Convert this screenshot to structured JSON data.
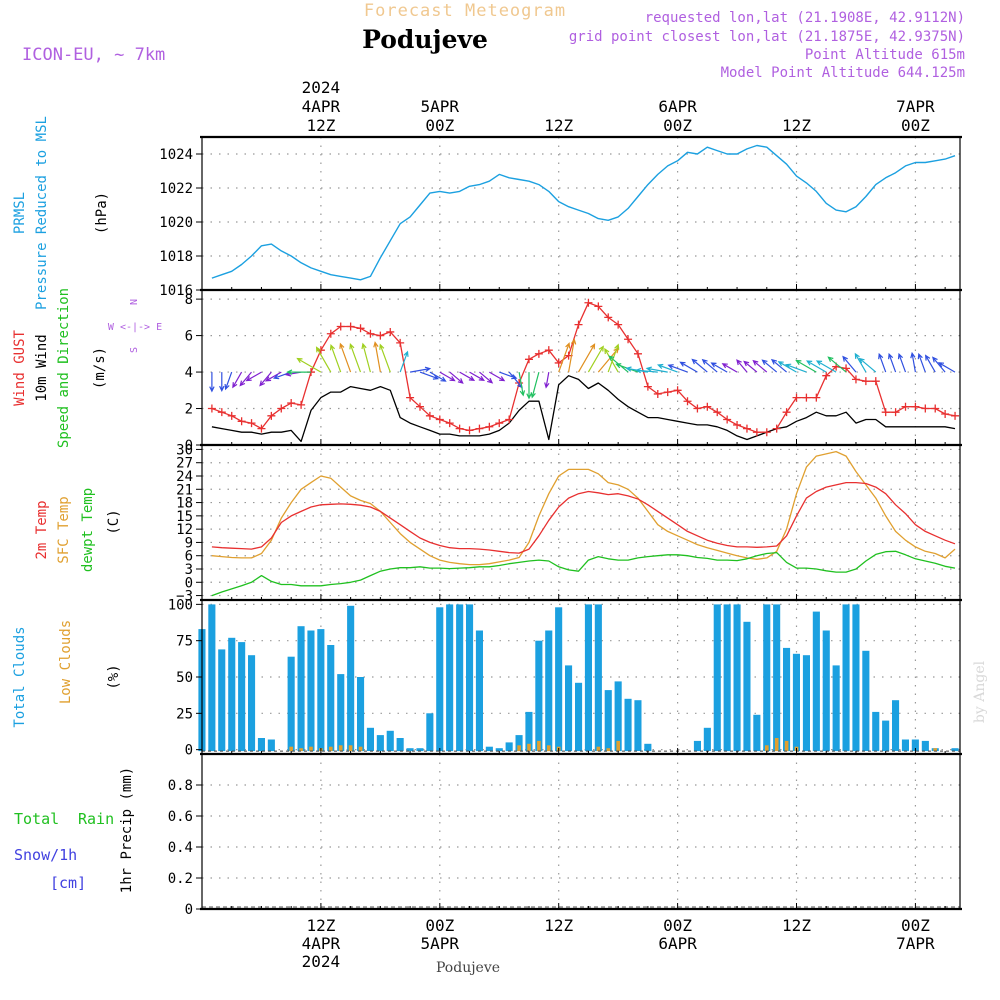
{
  "header": {
    "title": "Forecast Meteogram",
    "location": "Podujeve",
    "model": "ICON-EU, ~ 7km",
    "requested": "requested lon,lat (21.1908E, 42.9112N)",
    "gridpoint": "grid point closest lon,lat (21.1875E, 42.9375N)",
    "point_altitude": "Point Altitude 615m",
    "model_altitude": "Model Point Altitude 644.125m",
    "credit": "by Angel",
    "footer_location": "Podujeve"
  },
  "colors": {
    "pressure": "#1ba0e0",
    "gust": "#e83030",
    "wind": "#000000",
    "arrow_label": "#20c020",
    "temp2m": "#e83030",
    "sfc": "#e0a030",
    "dewpt": "#20c020",
    "total_clouds": "#1ba0e0",
    "low_clouds": "#e0a030",
    "rain": "#20c020",
    "snow": "#4040e0",
    "purple": "#b060e0",
    "title": "#f0c890"
  },
  "time_axis": {
    "top_labels": [
      {
        "t": 12,
        "lines": [
          "2024",
          "4APR",
          "12Z"
        ]
      },
      {
        "t": 24,
        "lines": [
          "5APR",
          "00Z"
        ]
      },
      {
        "t": 36,
        "lines": [
          "12Z"
        ]
      },
      {
        "t": 48,
        "lines": [
          "6APR",
          "00Z"
        ]
      },
      {
        "t": 60,
        "lines": [
          "12Z"
        ]
      },
      {
        "t": 72,
        "lines": [
          "7APR",
          "00Z"
        ]
      }
    ],
    "bottom_labels": [
      {
        "t": 12,
        "lines": [
          "12Z",
          "4APR",
          "2024"
        ]
      },
      {
        "t": 24,
        "lines": [
          "00Z",
          "5APR"
        ]
      },
      {
        "t": 36,
        "lines": [
          "12Z"
        ]
      },
      {
        "t": 48,
        "lines": [
          "00Z",
          "6APR"
        ]
      },
      {
        "t": 60,
        "lines": [
          "12Z"
        ]
      },
      {
        "t": 72,
        "lines": [
          "00Z",
          "7APR"
        ]
      }
    ]
  },
  "chart_data": [
    {
      "type": "line",
      "panel": "pressure",
      "labels": [
        "PRMSL",
        "Pressure Reduced to MSL",
        "(hPa)"
      ],
      "ylim": [
        1016,
        1025
      ],
      "yticks": [
        1016,
        1018,
        1020,
        1022,
        1024
      ],
      "x": [
        1,
        2,
        3,
        4,
        5,
        6,
        7,
        8,
        9,
        10,
        11,
        12,
        13,
        14,
        15,
        16,
        17,
        18,
        19,
        20,
        21,
        22,
        23,
        24,
        25,
        26,
        27,
        28,
        29,
        30,
        31,
        32,
        33,
        34,
        35,
        36,
        37,
        38,
        39,
        40,
        41,
        42,
        43,
        44,
        45,
        46,
        47,
        48,
        49,
        50,
        51,
        52,
        53,
        54,
        55,
        56,
        57,
        58,
        59,
        60,
        61,
        62,
        63,
        64,
        65,
        66,
        67,
        68,
        69,
        70,
        71,
        72,
        73,
        74,
        75,
        76
      ],
      "series": [
        {
          "name": "PRMSL",
          "values": [
            1016.7,
            1016.9,
            1017.1,
            1017.5,
            1018.0,
            1018.6,
            1018.7,
            1018.3,
            1018.0,
            1017.6,
            1017.3,
            1017.1,
            1016.9,
            1016.8,
            1016.7,
            1016.6,
            1016.8,
            1017.9,
            1018.9,
            1019.9,
            1020.3,
            1021.0,
            1021.7,
            1021.8,
            1021.7,
            1021.8,
            1022.1,
            1022.2,
            1022.4,
            1022.8,
            1022.6,
            1022.5,
            1022.4,
            1022.2,
            1021.8,
            1021.2,
            1020.9,
            1020.7,
            1020.5,
            1020.2,
            1020.1,
            1020.3,
            1020.8,
            1021.5,
            1022.2,
            1022.8,
            1023.3,
            1023.6,
            1024.1,
            1024.0,
            1024.4,
            1024.2,
            1024.0,
            1024.0,
            1024.3,
            1024.5,
            1024.4,
            1023.9,
            1023.4,
            1022.7,
            1022.3,
            1021.8,
            1021.1,
            1020.7,
            1020.6,
            1020.9,
            1021.5,
            1022.2,
            1022.6,
            1022.9,
            1023.3,
            1023.5,
            1023.5,
            1023.6,
            1023.7,
            1023.9
          ]
        }
      ]
    },
    {
      "type": "line",
      "panel": "wind",
      "labels": [
        "Wind GUST",
        "10m Wind",
        "Speed and Direction",
        "(m/s)"
      ],
      "compass": [
        "N",
        "W <-|-> E",
        "S"
      ],
      "ylim": [
        0,
        8.5
      ],
      "yticks": [
        0,
        2,
        4,
        6,
        8
      ],
      "x": [
        1,
        2,
        3,
        4,
        5,
        6,
        7,
        8,
        9,
        10,
        11,
        12,
        13,
        14,
        15,
        16,
        17,
        18,
        19,
        20,
        21,
        22,
        23,
        24,
        25,
        26,
        27,
        28,
        29,
        30,
        31,
        32,
        33,
        34,
        35,
        36,
        37,
        38,
        39,
        40,
        41,
        42,
        43,
        44,
        45,
        46,
        47,
        48,
        49,
        50,
        51,
        52,
        53,
        54,
        55,
        56,
        57,
        58,
        59,
        60,
        61,
        62,
        63,
        64,
        65,
        66,
        67,
        68,
        69,
        70,
        71,
        72,
        73,
        74,
        75,
        76
      ],
      "series": [
        {
          "name": "Wind GUST",
          "values": [
            2.0,
            1.8,
            1.6,
            1.3,
            1.2,
            0.9,
            1.6,
            2.0,
            2.3,
            2.2,
            4.0,
            5.2,
            6.1,
            6.5,
            6.5,
            6.4,
            6.1,
            6.0,
            6.2,
            5.6,
            2.6,
            2.1,
            1.6,
            1.4,
            1.2,
            0.9,
            0.8,
            0.9,
            1.0,
            1.2,
            1.4,
            3.4,
            4.7,
            5.0,
            5.2,
            4.5,
            4.9,
            6.6,
            7.8,
            7.6,
            7.0,
            6.6,
            5.8,
            5.0,
            3.2,
            2.8,
            2.9,
            3.0,
            2.4,
            2.0,
            2.1,
            1.8,
            1.4,
            1.1,
            0.9,
            0.7,
            0.7,
            0.9,
            1.8,
            2.6,
            2.6,
            2.6,
            3.8,
            4.3,
            4.2,
            3.6,
            3.5,
            3.5,
            1.8,
            1.8,
            2.1,
            2.1,
            2.0,
            2.0,
            1.7,
            1.6
          ]
        },
        {
          "name": "10m Wind",
          "values": [
            1.0,
            0.9,
            0.8,
            0.7,
            0.7,
            0.6,
            0.7,
            0.7,
            0.8,
            0.2,
            1.9,
            2.6,
            2.9,
            2.9,
            3.2,
            3.1,
            3.0,
            3.2,
            3.0,
            1.5,
            1.2,
            1.0,
            0.8,
            0.6,
            0.6,
            0.5,
            0.5,
            0.5,
            0.6,
            0.8,
            1.2,
            1.9,
            2.4,
            2.4,
            0.3,
            3.3,
            3.8,
            3.6,
            3.1,
            3.4,
            3.0,
            2.5,
            2.1,
            1.8,
            1.5,
            1.5,
            1.4,
            1.3,
            1.2,
            1.1,
            1.1,
            1.0,
            0.8,
            0.5,
            0.3,
            0.5,
            0.7,
            0.9,
            1.0,
            1.3,
            1.5,
            1.8,
            1.6,
            1.6,
            1.8,
            1.2,
            1.4,
            1.4,
            1.0,
            1.0,
            1.0,
            1.0,
            1.0,
            1.0,
            1.0,
            0.9
          ]
        }
      ],
      "direction_deg": [
        360,
        360,
        20,
        30,
        40,
        60,
        40,
        60,
        70,
        80,
        90,
        120,
        150,
        160,
        160,
        160,
        165,
        170,
        160,
        200,
        260,
        290,
        300,
        300,
        310,
        300,
        300,
        310,
        300,
        290,
        320,
        350,
        360,
        15,
        10,
        200,
        190,
        210,
        210,
        220,
        200,
        150,
        130,
        110,
        100,
        95,
        100,
        110,
        110,
        120,
        130,
        130,
        120,
        120,
        140,
        130,
        130,
        130,
        130,
        120,
        110,
        120,
        120,
        120,
        130,
        140,
        150,
        130,
        160,
        160,
        160,
        170,
        160,
        150,
        140,
        120
      ]
    },
    {
      "type": "line",
      "panel": "temperature",
      "labels": [
        "2m Temp",
        "SFC Temp",
        "dewpt Temp",
        "(C)"
      ],
      "ylim": [
        -4,
        31
      ],
      "yticks": [
        -3,
        0,
        3,
        6,
        9,
        12,
        15,
        18,
        21,
        24,
        27,
        30
      ],
      "x": [
        1,
        2,
        3,
        4,
        5,
        6,
        7,
        8,
        9,
        10,
        11,
        12,
        13,
        14,
        15,
        16,
        17,
        18,
        19,
        20,
        21,
        22,
        23,
        24,
        25,
        26,
        27,
        28,
        29,
        30,
        31,
        32,
        33,
        34,
        35,
        36,
        37,
        38,
        39,
        40,
        41,
        42,
        43,
        44,
        45,
        46,
        47,
        48,
        49,
        50,
        51,
        52,
        53,
        54,
        55,
        56,
        57,
        58,
        59,
        60,
        61,
        62,
        63,
        64,
        65,
        66,
        67,
        68,
        69,
        70,
        71,
        72,
        73,
        74,
        75,
        76
      ],
      "series": [
        {
          "name": "2m Temp",
          "values": [
            8.0,
            7.8,
            7.7,
            7.6,
            7.5,
            8.0,
            10.0,
            13.5,
            15.0,
            16.0,
            17.0,
            17.5,
            17.6,
            17.7,
            17.6,
            17.4,
            17.0,
            16.0,
            14.5,
            13.0,
            11.5,
            10.0,
            9.0,
            8.3,
            7.8,
            7.6,
            7.6,
            7.5,
            7.3,
            7.0,
            6.7,
            6.6,
            7.5,
            10.5,
            14.0,
            17.0,
            19.0,
            20.0,
            20.5,
            20.2,
            19.8,
            20.0,
            19.5,
            18.8,
            17.5,
            16.0,
            14.5,
            13.0,
            11.5,
            10.5,
            9.5,
            8.8,
            8.3,
            8.0,
            8.0,
            7.9,
            8.0,
            8.2,
            10.5,
            15.0,
            19.0,
            20.5,
            21.5,
            22.0,
            22.5,
            22.5,
            22.3,
            21.5,
            20.0,
            17.5,
            15.5,
            13.0,
            11.5,
            10.5,
            9.5,
            8.7
          ]
        },
        {
          "name": "SFC Temp",
          "values": [
            6.0,
            5.8,
            5.6,
            5.5,
            5.5,
            6.5,
            9.5,
            14.5,
            18.0,
            21.0,
            22.5,
            24.0,
            23.5,
            21.5,
            19.5,
            18.5,
            17.8,
            16.0,
            13.5,
            11.0,
            9.0,
            7.5,
            6.0,
            5.0,
            4.5,
            4.2,
            4.0,
            4.0,
            4.2,
            4.6,
            5.0,
            5.6,
            9.0,
            15.0,
            20.0,
            24.0,
            25.5,
            25.5,
            25.5,
            24.5,
            22.5,
            22.0,
            21.0,
            19.0,
            16.0,
            13.0,
            11.5,
            10.5,
            9.5,
            8.5,
            7.8,
            7.2,
            6.6,
            6.0,
            5.5,
            5.2,
            5.5,
            7.0,
            12.0,
            20.0,
            26.0,
            28.5,
            29.0,
            29.5,
            28.5,
            25.0,
            22.0,
            19.0,
            15.0,
            11.5,
            9.5,
            8.0,
            7.0,
            6.5,
            5.5,
            7.5
          ]
        },
        {
          "name": "dewpt Temp",
          "values": [
            -3.0,
            -2.2,
            -1.5,
            -0.8,
            0.0,
            1.5,
            0.2,
            -0.5,
            -0.5,
            -0.8,
            -0.8,
            -0.8,
            -0.5,
            -0.3,
            0.0,
            0.5,
            1.5,
            2.5,
            3.0,
            3.3,
            3.3,
            3.5,
            3.2,
            3.2,
            3.1,
            3.2,
            3.3,
            3.5,
            3.5,
            3.8,
            4.2,
            4.5,
            4.8,
            5.0,
            4.8,
            3.5,
            2.8,
            2.5,
            5.0,
            5.8,
            5.3,
            5.0,
            5.0,
            5.5,
            5.8,
            6.0,
            6.2,
            6.2,
            6.0,
            5.6,
            5.4,
            5.0,
            5.0,
            4.9,
            5.3,
            6.0,
            6.5,
            6.7,
            4.5,
            3.2,
            3.2,
            3.0,
            2.6,
            2.3,
            2.3,
            3.0,
            4.8,
            6.3,
            6.9,
            7.0,
            6.2,
            5.3,
            4.8,
            4.3,
            3.6,
            3.2
          ]
        }
      ]
    },
    {
      "type": "bar",
      "panel": "clouds",
      "labels": [
        "Total Clouds",
        "Low Clouds",
        "(%)"
      ],
      "ylim": [
        -3,
        103
      ],
      "yticks": [
        0,
        25,
        50,
        75,
        100
      ],
      "x": [
        0,
        1,
        2,
        3,
        4,
        5,
        6,
        7,
        8,
        9,
        10,
        11,
        12,
        13,
        14,
        15,
        16,
        17,
        18,
        19,
        20,
        21,
        22,
        23,
        24,
        25,
        26,
        27,
        28,
        29,
        30,
        31,
        32,
        33,
        34,
        35,
        36,
        37,
        38,
        39,
        40,
        41,
        42,
        43,
        44,
        45,
        46,
        47,
        48,
        49,
        50,
        51,
        52,
        53,
        54,
        55,
        56,
        57,
        58,
        59,
        60,
        61,
        62,
        63,
        64,
        65,
        66,
        67,
        68,
        69,
        70,
        71,
        72,
        73,
        74,
        75,
        76
      ],
      "series": [
        {
          "name": "Total Clouds",
          "values": [
            83,
            100,
            69,
            77,
            74,
            65,
            8,
            7,
            0,
            64,
            85,
            82,
            83,
            72,
            52,
            99,
            50,
            15,
            10,
            13,
            8,
            1,
            1,
            25,
            98,
            100,
            100,
            100,
            82,
            2,
            1,
            5,
            10,
            26,
            75,
            82,
            98,
            58,
            46,
            100,
            100,
            41,
            47,
            35,
            34,
            4,
            0,
            0,
            0,
            0,
            6,
            15,
            100,
            100,
            100,
            88,
            24,
            100,
            100,
            70,
            66,
            65,
            95,
            82,
            58,
            100,
            100,
            68,
            26,
            20,
            34,
            7,
            7,
            6,
            1,
            0,
            1
          ]
        },
        {
          "name": "Low Clouds",
          "values": [
            0,
            0,
            0,
            0,
            0,
            0,
            0,
            0,
            0,
            2,
            1,
            2,
            1,
            2,
            3,
            3,
            2,
            0,
            0,
            0,
            0,
            0,
            0,
            0,
            0,
            0,
            0,
            0,
            0,
            0,
            0,
            0,
            3,
            4,
            6,
            3,
            2,
            0,
            0,
            0,
            2,
            1,
            6,
            0,
            0,
            0,
            0,
            0,
            0,
            0,
            0,
            0,
            0,
            0,
            0,
            0,
            0,
            3,
            8,
            6,
            2,
            0,
            0,
            0,
            0,
            0,
            0,
            0,
            0,
            0,
            0,
            0,
            0,
            0,
            1,
            0,
            0
          ]
        }
      ]
    },
    {
      "type": "bar",
      "panel": "precipitation",
      "labels": [
        "Total",
        "Rain",
        "Snow/1h",
        "[cm]",
        "1hr Precip (mm)"
      ],
      "ylim": [
        0,
        1.0
      ],
      "yticks": [
        0,
        0.2,
        0.4,
        0.6,
        0.8
      ],
      "x": [],
      "series": []
    }
  ]
}
